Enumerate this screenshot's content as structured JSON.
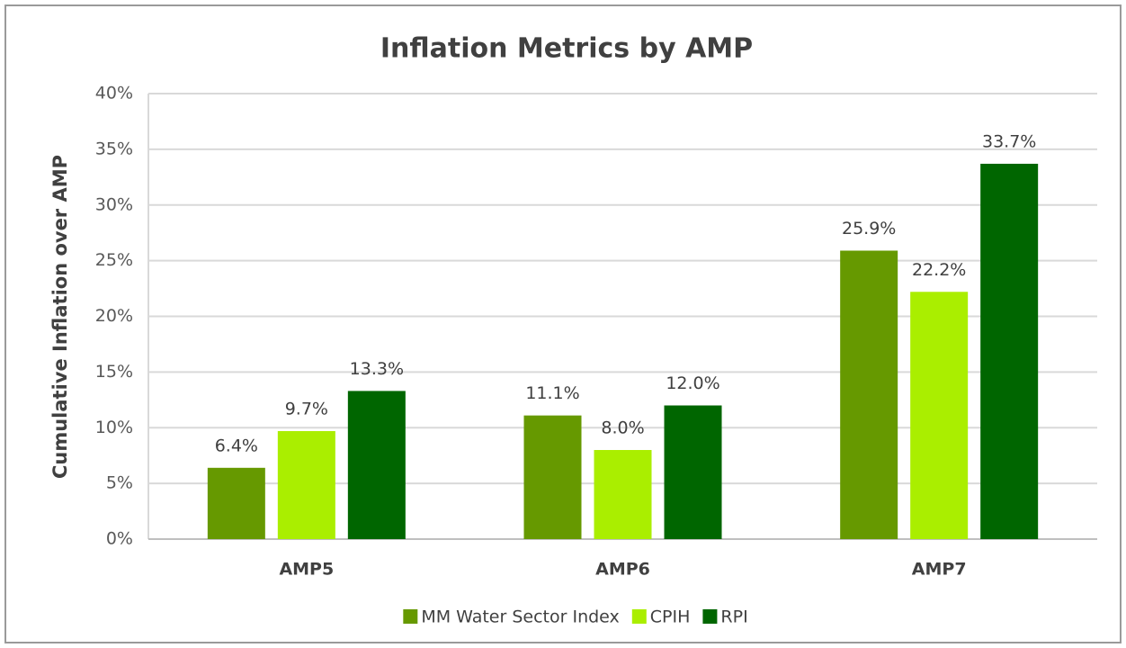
{
  "chart_data": {
    "type": "bar",
    "title": "Inflation Metrics by AMP",
    "ylabel": "Cumulative Inflation over AMP",
    "categories": [
      "AMP5",
      "AMP6",
      "AMP7"
    ],
    "series": [
      {
        "name": "MM Water Sector Index",
        "color": "#669900",
        "values": [
          6.4,
          11.1,
          25.9
        ],
        "value_labels": [
          "6.4%",
          "11.1%",
          "25.9%"
        ]
      },
      {
        "name": "CPIH",
        "color": "#aaee00",
        "values": [
          9.7,
          8.0,
          22.2
        ],
        "value_labels": [
          "9.7%",
          "8.0%",
          "22.2%"
        ]
      },
      {
        "name": "RPI",
        "color": "#006600",
        "values": [
          13.3,
          12.0,
          33.7
        ],
        "value_labels": [
          "13.3%",
          "12.0%",
          "33.7%"
        ]
      }
    ],
    "ylim": [
      0,
      40
    ],
    "yticks": [
      {
        "value": 0,
        "label": "0%"
      },
      {
        "value": 5,
        "label": "5%"
      },
      {
        "value": 10,
        "label": "10%"
      },
      {
        "value": 15,
        "label": "15%"
      },
      {
        "value": 20,
        "label": "20%"
      },
      {
        "value": 25,
        "label": "25%"
      },
      {
        "value": 30,
        "label": "30%"
      },
      {
        "value": 35,
        "label": "35%"
      },
      {
        "value": 40,
        "label": "40%"
      }
    ],
    "grid": true,
    "legend": "bottom"
  }
}
